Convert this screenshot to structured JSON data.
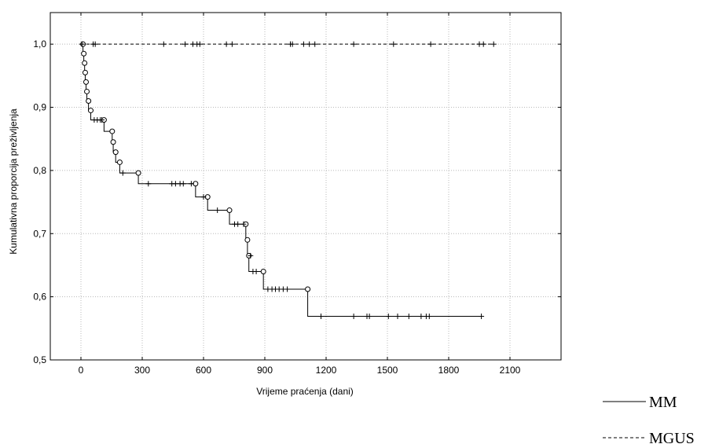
{
  "chart_data": {
    "type": "line",
    "title": "",
    "xlabel": "Vrijeme praćenja (dani)",
    "ylabel": "Kumulativna proporcija preživljenja",
    "xlim": [
      -150,
      2350
    ],
    "ylim": [
      0.5,
      1.05
    ],
    "x_ticks": [
      0,
      300,
      600,
      900,
      1200,
      1500,
      1800,
      2100
    ],
    "y_ticks": [
      0.5,
      0.6,
      0.7,
      0.8,
      0.9,
      1.0
    ],
    "x_tick_labels": [
      "0",
      "300",
      "600",
      "900",
      "1200",
      "1500",
      "1800",
      "2100"
    ],
    "y_tick_labels": [
      "0,5",
      "0,6",
      "0,7",
      "0,8",
      "0,9",
      "1,0"
    ],
    "grid": true,
    "legend_position": "bottom-right outside plot",
    "series": [
      {
        "name": "MM",
        "line_style": "solid",
        "steps": [
          [
            0,
            1.0
          ],
          [
            10,
            0.985
          ],
          [
            14,
            0.97
          ],
          [
            18,
            0.955
          ],
          [
            21,
            0.94
          ],
          [
            25,
            0.925
          ],
          [
            29,
            0.91
          ],
          [
            37,
            0.895
          ],
          [
            48,
            0.88
          ],
          [
            113,
            0.862
          ],
          [
            153,
            0.845
          ],
          [
            158,
            0.829
          ],
          [
            170,
            0.813
          ],
          [
            190,
            0.796
          ],
          [
            281,
            0.779
          ],
          [
            561,
            0.758
          ],
          [
            620,
            0.737
          ],
          [
            727,
            0.715
          ],
          [
            807,
            0.69
          ],
          [
            815,
            0.665
          ],
          [
            822,
            0.64
          ],
          [
            893,
            0.612
          ],
          [
            1110,
            0.569
          ],
          [
            1960,
            0.569
          ]
        ],
        "event_markers": [
          10,
          14,
          18,
          21,
          25,
          29,
          37,
          48,
          113,
          153,
          158,
          170,
          190,
          281,
          561,
          620,
          727,
          807,
          815,
          822,
          893,
          1110
        ],
        "censored": [
          [
            65,
            0.88
          ],
          [
            80,
            0.88
          ],
          [
            95,
            0.88
          ],
          [
            102,
            0.88
          ],
          [
            205,
            0.796
          ],
          [
            330,
            0.779
          ],
          [
            445,
            0.779
          ],
          [
            463,
            0.779
          ],
          [
            485,
            0.779
          ],
          [
            501,
            0.779
          ],
          [
            540,
            0.779
          ],
          [
            600,
            0.758
          ],
          [
            668,
            0.737
          ],
          [
            752,
            0.715
          ],
          [
            768,
            0.715
          ],
          [
            796,
            0.715
          ],
          [
            830,
            0.665
          ],
          [
            842,
            0.64
          ],
          [
            858,
            0.64
          ],
          [
            915,
            0.612
          ],
          [
            935,
            0.612
          ],
          [
            952,
            0.612
          ],
          [
            970,
            0.612
          ],
          [
            990,
            0.612
          ],
          [
            1010,
            0.612
          ],
          [
            1175,
            0.569
          ],
          [
            1335,
            0.569
          ],
          [
            1400,
            0.569
          ],
          [
            1412,
            0.569
          ],
          [
            1505,
            0.569
          ],
          [
            1550,
            0.569
          ],
          [
            1605,
            0.569
          ],
          [
            1665,
            0.569
          ],
          [
            1690,
            0.569
          ],
          [
            1705,
            0.569
          ],
          [
            1960,
            0.569
          ]
        ]
      },
      {
        "name": "MGUS",
        "line_style": "dashed",
        "steps": [
          [
            0,
            1.0
          ],
          [
            2020,
            1.0
          ]
        ],
        "event_markers": [],
        "censored": [
          [
            5,
            1.0
          ],
          [
            60,
            1.0
          ],
          [
            70,
            1.0
          ],
          [
            405,
            1.0
          ],
          [
            510,
            1.0
          ],
          [
            548,
            1.0
          ],
          [
            568,
            1.0
          ],
          [
            582,
            1.0
          ],
          [
            712,
            1.0
          ],
          [
            740,
            1.0
          ],
          [
            1025,
            1.0
          ],
          [
            1035,
            1.0
          ],
          [
            1090,
            1.0
          ],
          [
            1118,
            1.0
          ],
          [
            1145,
            1.0
          ],
          [
            1335,
            1.0
          ],
          [
            1530,
            1.0
          ],
          [
            1712,
            1.0
          ],
          [
            1950,
            1.0
          ],
          [
            1970,
            1.0
          ],
          [
            2020,
            1.0
          ]
        ]
      }
    ]
  }
}
